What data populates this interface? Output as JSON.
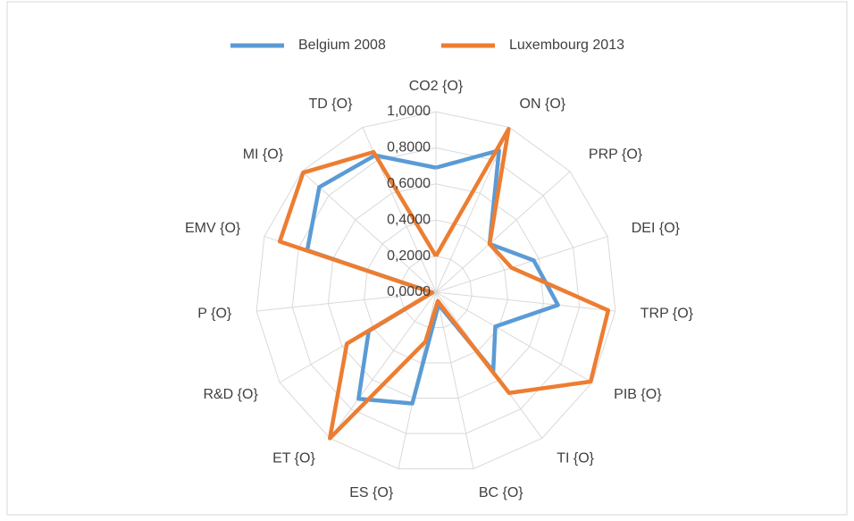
{
  "chart_data": {
    "type": "radar",
    "categories": [
      "CO2 {O}",
      "ON {O}",
      "PRP {O}",
      "DEI {O}",
      "TRP {O}",
      "PIB {O}",
      "TI {O}",
      "BC {O}",
      "ES {O}",
      "ET {O}",
      "R&D {O}",
      "P {O}",
      "EMV {O}",
      "MI {O}",
      "TD {O}"
    ],
    "series": [
      {
        "name": "Belgium 2008",
        "color": "#5b9bd5",
        "values": [
          0.69,
          0.86,
          0.4,
          0.57,
          0.68,
          0.38,
          0.54,
          0.07,
          0.63,
          0.73,
          0.43,
          0.02,
          0.75,
          0.87,
          0.83
        ]
      },
      {
        "name": "Luxembourg 2013",
        "color": "#ed7d31",
        "values": [
          0.2,
          0.99,
          0.4,
          0.44,
          0.96,
          0.99,
          0.69,
          0.05,
          0.28,
          1.0,
          0.57,
          0.02,
          0.91,
          0.99,
          0.85
        ]
      }
    ],
    "ylim": [
      0,
      1
    ],
    "yticks": [
      {
        "value": 0,
        "label": "0,0000"
      },
      {
        "value": 0.2,
        "label": "0,2000"
      },
      {
        "value": 0.4,
        "label": "0,4000"
      },
      {
        "value": 0.6,
        "label": "0,6000"
      },
      {
        "value": 0.8,
        "label": "0,8000"
      },
      {
        "value": 1,
        "label": "1,0000"
      }
    ],
    "grid": true,
    "legend": "top"
  }
}
